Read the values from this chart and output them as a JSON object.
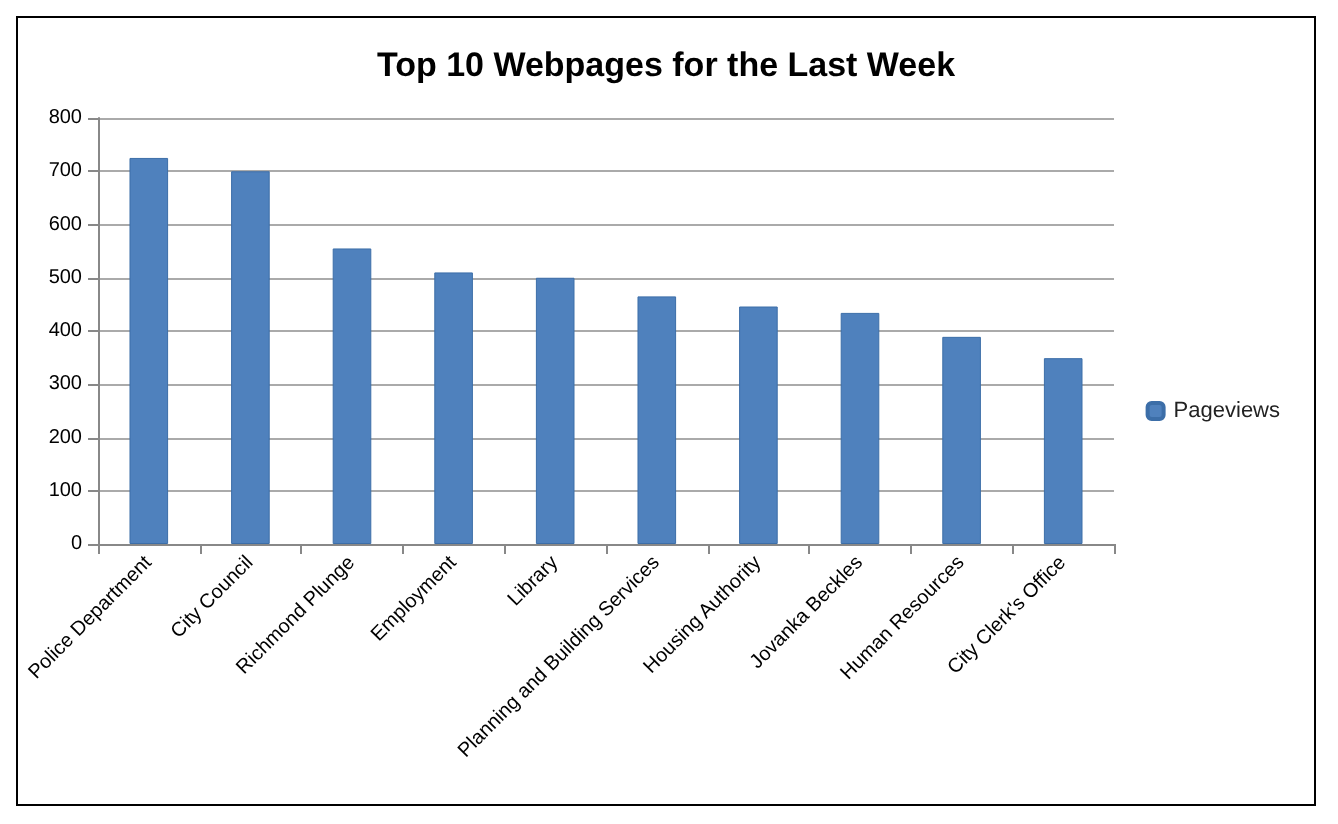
{
  "chart_data": {
    "type": "bar",
    "title": "Top 10 Webpages for the Last Week",
    "categories": [
      "Police Department",
      "City Council",
      "Richmond Plunge",
      "Employment",
      "Library",
      "Planning and Building Services",
      "Housing Authority",
      "Jovanka Beckles",
      "Human Resources",
      "City Clerk's Office"
    ],
    "series": [
      {
        "name": "Pageviews",
        "color": "#4f81bd",
        "values": [
          725,
          700,
          555,
          510,
          500,
          465,
          446,
          434,
          389,
          349
        ]
      }
    ],
    "ylim": [
      0,
      800
    ],
    "yticks": [
      0,
      100,
      200,
      300,
      400,
      500,
      600,
      700,
      800
    ],
    "grid": "y",
    "legend": "right"
  }
}
